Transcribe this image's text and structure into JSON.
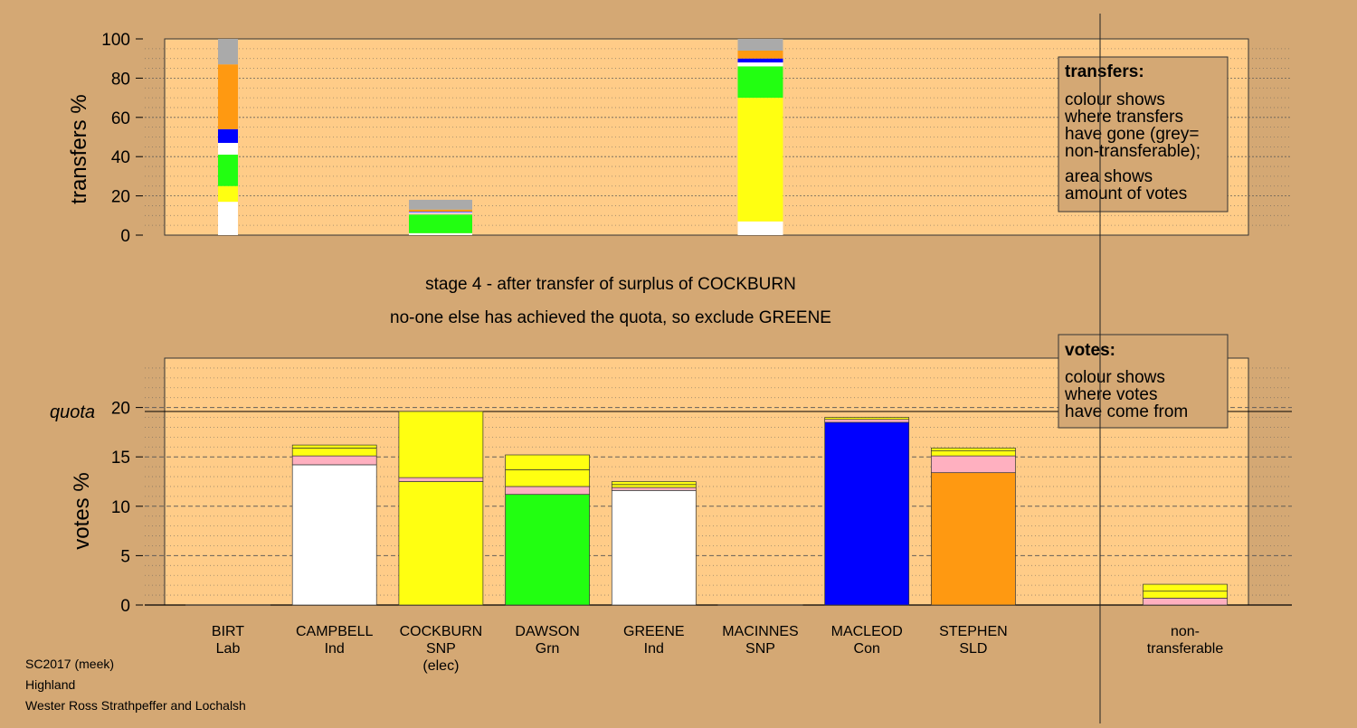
{
  "colors": {
    "background": "#d4a874",
    "panel": "#ffcc88",
    "Lab": "#ffffff",
    "Ind": "#ffffff",
    "SNP": "#ffff11",
    "Grn": "#22ff11",
    "Con": "#0000ff",
    "SLD": "#ff9911",
    "nontransferable": "#aaaaaa",
    "pink": "#ffb0c0"
  },
  "headline": {
    "line1": "stage 4 - after transfer of surplus of COCKBURN",
    "line2": "no-one else has achieved the quota, so exclude GREENE"
  },
  "footer": {
    "line1": "SC2017 (meek)",
    "line2": "Highland",
    "line3": "Wester Ross Strathpeffer and Lochalsh"
  },
  "transfers_legend": {
    "title": "transfers:",
    "lines1": [
      "colour shows",
      "where transfers",
      "have gone (grey=",
      "non-transferable);"
    ],
    "lines2": [
      "area shows",
      "amount of votes"
    ]
  },
  "votes_legend": {
    "title": "votes:",
    "lines1": [
      "colour shows",
      "where votes",
      "have come from"
    ]
  },
  "chart_data": [
    {
      "type": "bar",
      "ylabel": "transfers %",
      "ylim": [
        0,
        100
      ],
      "yticks": [
        0,
        20,
        40,
        60,
        80,
        100
      ],
      "grid": true,
      "stacked": true,
      "bars": [
        {
          "slot": 0,
          "segments": [
            {
              "color": "#ffffff",
              "value": 17
            },
            {
              "color": "#ffff11",
              "value": 8
            },
            {
              "color": "#22ff11",
              "value": 16
            },
            {
              "color": "#ffffff",
              "value": 6
            },
            {
              "color": "#0000ff",
              "value": 7
            },
            {
              "color": "#ff9911",
              "value": 33
            },
            {
              "color": "#aaaaaa",
              "value": 13
            }
          ]
        },
        {
          "slot": 2,
          "segments": [
            {
              "color": "#ffffff",
              "value": 1
            },
            {
              "color": "#22ff11",
              "value": 9.5
            },
            {
              "color": "#ffb0c0",
              "value": 0.7
            },
            {
              "color": "#ffffff",
              "value": 0.5
            },
            {
              "color": "#0000ff",
              "value": 0.3
            },
            {
              "color": "#ff9911",
              "value": 1
            },
            {
              "color": "#aaaaaa",
              "value": 5
            }
          ]
        },
        {
          "slot": 5,
          "segments": [
            {
              "color": "#ffffff",
              "value": 7
            },
            {
              "color": "#ffff11",
              "value": 63
            },
            {
              "color": "#22ff11",
              "value": 16
            },
            {
              "color": "#ffffff",
              "value": 2
            },
            {
              "color": "#0000ff",
              "value": 2
            },
            {
              "color": "#ff9911",
              "value": 4
            },
            {
              "color": "#aaaaaa",
              "value": 6
            }
          ]
        }
      ]
    },
    {
      "type": "bar",
      "ylabel": "votes %",
      "ylim": [
        0,
        25
      ],
      "yticks": [
        0,
        5,
        10,
        15,
        20
      ],
      "grid": true,
      "stacked": true,
      "quota": 19.6,
      "quota_label": "quota",
      "categories": [
        {
          "name": "BIRT",
          "party": "Lab",
          "extra": "",
          "segments": []
        },
        {
          "name": "CAMPBELL",
          "party": "Ind",
          "extra": "",
          "segments": [
            {
              "color": "#ffffff",
              "value": 14.2
            },
            {
              "color": "#ffb0c0",
              "value": 0.9
            },
            {
              "color": "#ffff11",
              "value": 0.8
            },
            {
              "color": "#ffff11",
              "value": 0.3
            }
          ]
        },
        {
          "name": "COCKBURN",
          "party": "SNP",
          "extra": "(elec)",
          "segments": [
            {
              "color": "#ffff11",
              "value": 12.5
            },
            {
              "color": "#ffb0c0",
              "value": 0.4
            },
            {
              "color": "#ffff11",
              "value": 6.7
            }
          ]
        },
        {
          "name": "DAWSON",
          "party": "Grn",
          "extra": "",
          "segments": [
            {
              "color": "#22ff11",
              "value": 11.2
            },
            {
              "color": "#ffb0c0",
              "value": 0.8
            },
            {
              "color": "#ffff11",
              "value": 1.7
            },
            {
              "color": "#ffff11",
              "value": 1.5
            }
          ]
        },
        {
          "name": "GREENE",
          "party": "Ind",
          "extra": "",
          "segments": [
            {
              "color": "#ffffff",
              "value": 11.6
            },
            {
              "color": "#ffb0c0",
              "value": 0.3
            },
            {
              "color": "#ffff11",
              "value": 0.3
            },
            {
              "color": "#ffff11",
              "value": 0.3
            }
          ]
        },
        {
          "name": "MACINNES",
          "party": "SNP",
          "extra": "",
          "segments": []
        },
        {
          "name": "MACLEOD",
          "party": "Con",
          "extra": "",
          "segments": [
            {
              "color": "#0000ff",
              "value": 18.5
            },
            {
              "color": "#ffb0c0",
              "value": 0.3
            },
            {
              "color": "#ffff11",
              "value": 0.2
            }
          ]
        },
        {
          "name": "STEPHEN",
          "party": "SLD",
          "extra": "",
          "segments": [
            {
              "color": "#ff9911",
              "value": 13.4
            },
            {
              "color": "#ffb0c0",
              "value": 1.7
            },
            {
              "color": "#ffff11",
              "value": 0.5
            },
            {
              "color": "#ffff11",
              "value": 0.3
            }
          ]
        }
      ],
      "nontransferable": {
        "name": "non-",
        "name2": "transferable",
        "segments": [
          {
            "color": "#ffb0c0",
            "value": 0.7
          },
          {
            "color": "#ffff11",
            "value": 0.7
          },
          {
            "color": "#ffff11",
            "value": 0.7
          }
        ]
      }
    }
  ]
}
